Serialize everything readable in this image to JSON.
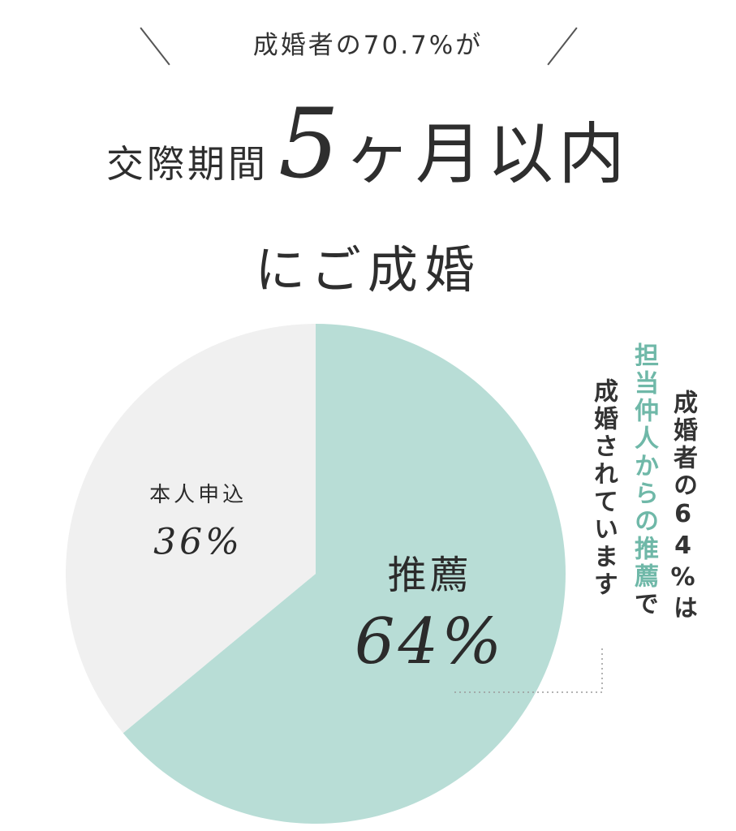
{
  "headline": {
    "pre": "成婚者の70.7%が",
    "main_prefix": "交際期間",
    "main_highlight": "5",
    "main_suffix": "ヶ月以内",
    "sub": "にご成婚"
  },
  "chart_data": {
    "type": "pie",
    "slices": [
      {
        "label": "推薦",
        "value": 64,
        "value_label": "64%",
        "color": "#b8ddd6"
      },
      {
        "label": "本人申込",
        "value": 36,
        "value_label": "36%",
        "color": "#f0f0f0"
      }
    ]
  },
  "callout": {
    "col1": "成婚者の64%は",
    "col2_accent": "担当仲人からの推薦",
    "col2_tail": "で",
    "col3": "成婚されています",
    "accent_color": "#6fb8a8"
  }
}
